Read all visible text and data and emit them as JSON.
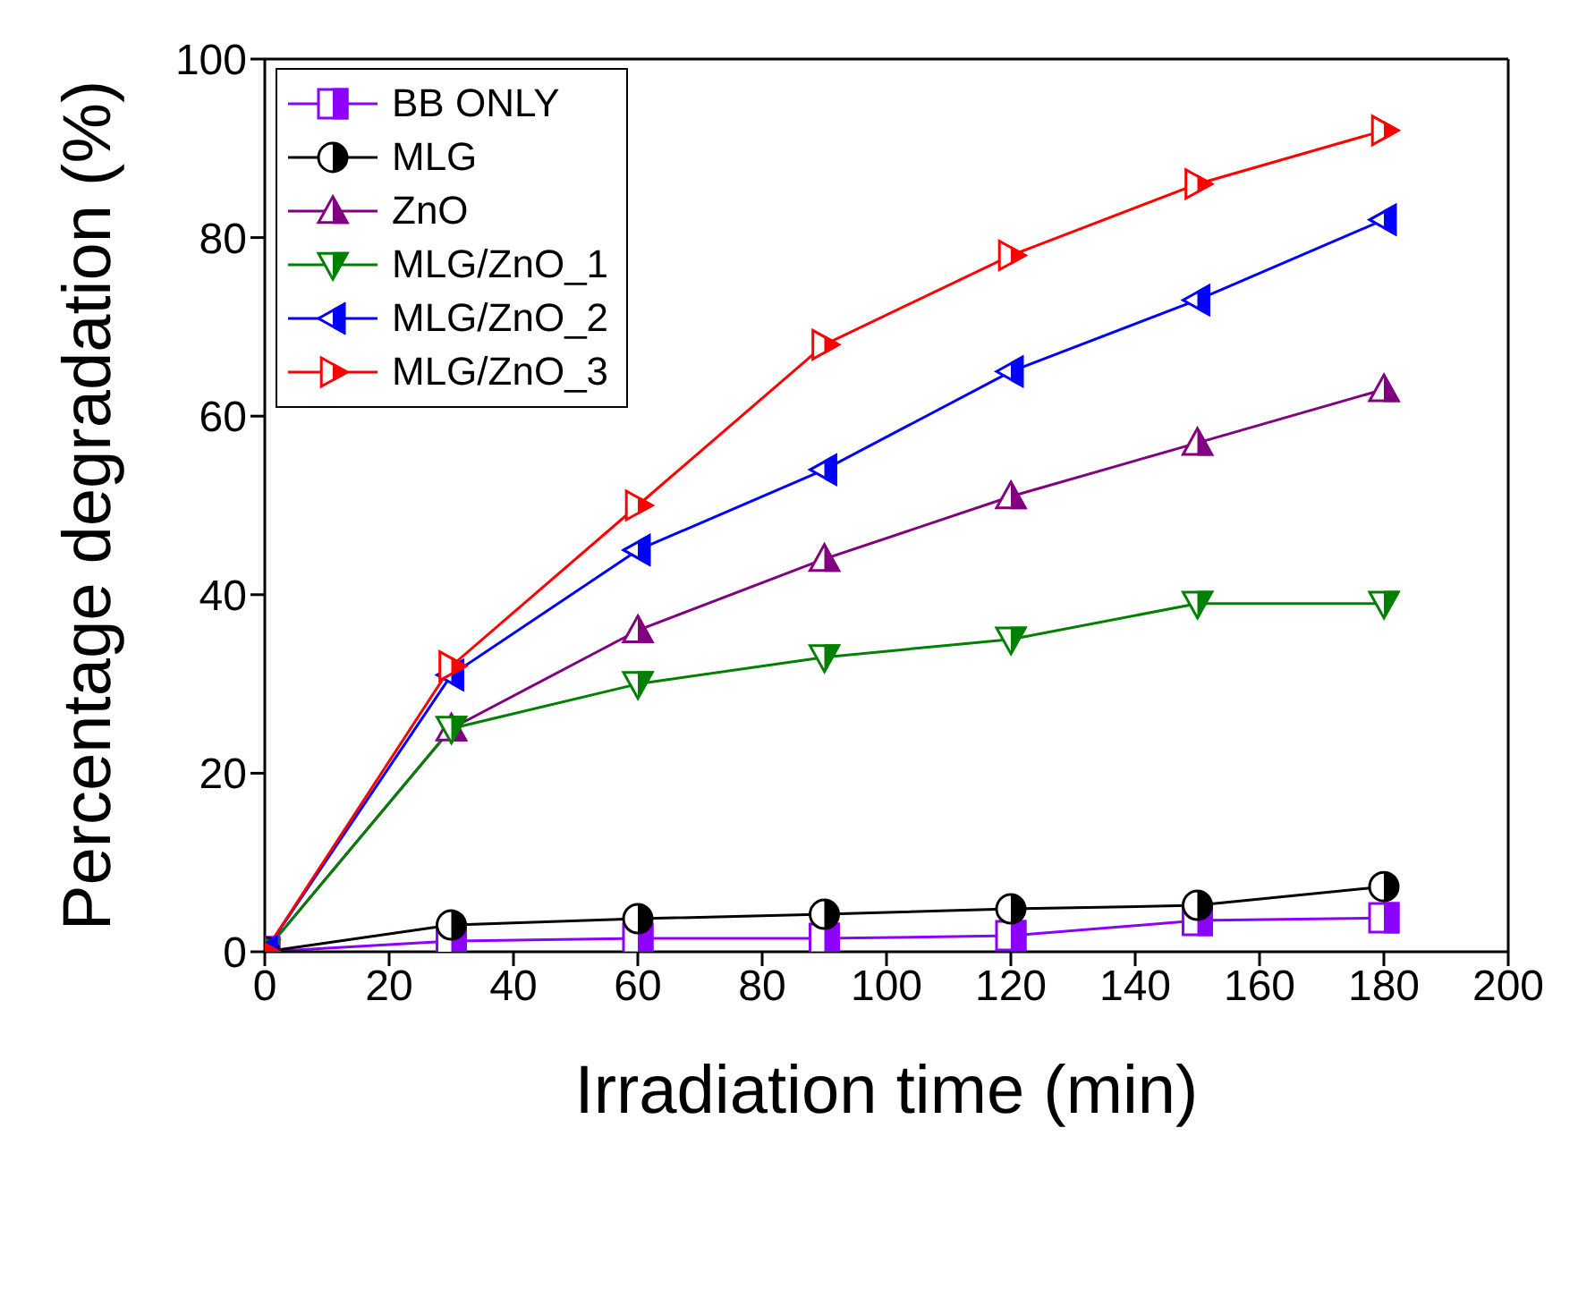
{
  "chart_data": {
    "type": "line",
    "xlabel": "Irradiation time (min)",
    "ylabel": "Percentage degradation (%)",
    "x": [
      0,
      30,
      60,
      90,
      120,
      150,
      180
    ],
    "xlim": [
      0,
      200
    ],
    "xticks": [
      0,
      20,
      40,
      60,
      80,
      100,
      120,
      140,
      160,
      180,
      200
    ],
    "ylim": [
      0,
      100
    ],
    "yticks": [
      0,
      20,
      40,
      60,
      80,
      100
    ],
    "grid": false,
    "legend": "top left",
    "series": [
      {
        "name": "BB ONLY",
        "color": "#8b00ff",
        "marker": "square",
        "values": [
          0,
          1.2,
          1.5,
          1.5,
          1.8,
          3.5,
          3.8
        ]
      },
      {
        "name": "MLG",
        "color": "#000000",
        "marker": "circle",
        "values": [
          0,
          3,
          3.7,
          4.2,
          4.8,
          5.2,
          7.3
        ]
      },
      {
        "name": "ZnO",
        "color": "#800080",
        "marker": "triangle",
        "values": [
          0,
          25,
          36,
          44,
          51,
          57,
          63
        ]
      },
      {
        "name": "MLG/ZnO_1",
        "color": "#008000",
        "marker": "triangle-down",
        "values": [
          0,
          25,
          30,
          33,
          35,
          39,
          39
        ]
      },
      {
        "name": "MLG/ZnO_2",
        "color": "#0000ff",
        "marker": "triangle-left",
        "values": [
          0,
          31,
          45,
          54,
          65,
          73,
          82
        ]
      },
      {
        "name": "MLG/ZnO_3",
        "color": "#ff0000",
        "marker": "triangle-right",
        "values": [
          0,
          32,
          50,
          68,
          78,
          86,
          92
        ]
      }
    ]
  }
}
